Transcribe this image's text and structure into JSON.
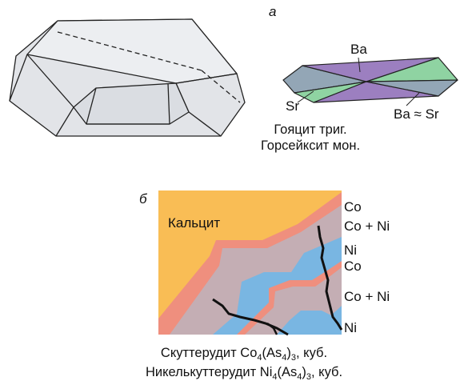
{
  "panel_a": {
    "letter": "а",
    "labels": {
      "ba": "Ba",
      "sr": "Sr",
      "ba_sr": "Ba ≈ Sr"
    },
    "caption_line1": "Гояцит триг.",
    "caption_line2": "Горсейксит мон.",
    "colors": {
      "crystal_face": "#e2e4e8",
      "crystal_top": "#eceef1",
      "edge": "#222222",
      "ba": "#9c7fc0",
      "sr": "#8fd3a2",
      "mixed": "#93a6b6"
    }
  },
  "panel_b": {
    "letter": "б",
    "matrix_label": "Кальцит",
    "zone_labels": [
      "Co",
      "Co + Ni",
      "Ni",
      "Co",
      "Co + Ni",
      "Ni"
    ],
    "caption_line1": {
      "name": "Скуттерудит",
      "formula_main": "Co",
      "sub1": "4",
      "mid": "(As",
      "sub2": "4",
      "close": ")",
      "sub3": "3",
      "suffix": ", куб."
    },
    "caption_line2": {
      "name": "Никелькуттерудит",
      "formula_main": "Ni",
      "sub1": "4",
      "mid": "(As",
      "sub2": "4",
      "close": ")",
      "sub3": "3",
      "suffix": ", куб."
    },
    "colors": {
      "calcite": "#f9bd55",
      "co": "#ef8f7e",
      "coni": "#c4aeb4",
      "ni": "#79b6e2",
      "boundary": "#111111"
    }
  }
}
